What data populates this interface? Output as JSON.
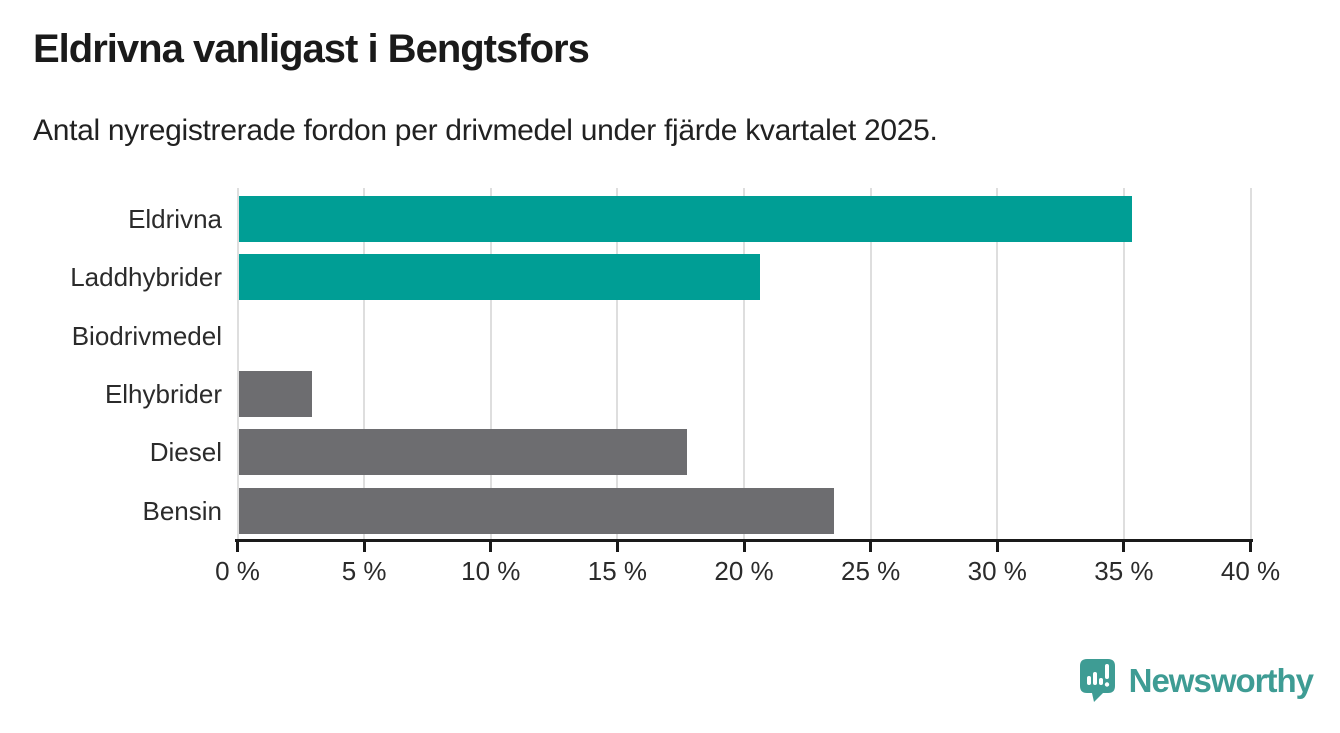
{
  "title": "Eldrivna vanligast i Bengtsfors",
  "subtitle": "Antal nyregistrerade fordon per drivmedel under fjärde kvartalet 2025.",
  "chart_data": {
    "type": "bar",
    "orientation": "horizontal",
    "title": "Eldrivna vanligast i Bengtsfors",
    "subtitle": "Antal nyregistrerade fordon per drivmedel under fjärde kvartalet 2025.",
    "categories": [
      "Eldrivna",
      "Laddhybrider",
      "Biodrivmedel",
      "Elhybrider",
      "Diesel",
      "Bensin"
    ],
    "values": [
      35.3,
      20.6,
      0,
      2.9,
      17.7,
      23.5
    ],
    "unit": "%",
    "xlim": [
      0,
      40
    ],
    "xticks": [
      0,
      5,
      10,
      15,
      20,
      25,
      30,
      35,
      40
    ],
    "xtick_labels": [
      "0 %",
      "5 %",
      "10 %",
      "15 %",
      "20 %",
      "25 %",
      "30 %",
      "35 %",
      "40 %"
    ],
    "grid": true,
    "legend": "none",
    "bar_colors": [
      "#009e95",
      "#009e95",
      "#009e95",
      "#6d6d70",
      "#6d6d70",
      "#6d6d70"
    ]
  },
  "colors": {
    "accent_teal": "#009e95",
    "bar_gray": "#6d6d70",
    "text_dark": "#1a1a1a",
    "gridline": "#dedede",
    "axis": "#1a1a1a",
    "logo_teal": "#3e9c94",
    "background": "#ffffff"
  },
  "branding": {
    "logo_text": "Newsworthy",
    "logo_icon": "newsworthy-pin-barchart-icon"
  }
}
